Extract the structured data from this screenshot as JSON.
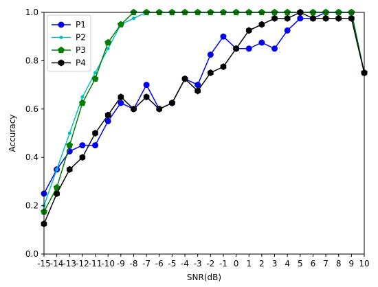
{
  "chart_data": {
    "type": "line",
    "title": "",
    "xlabel": "SNR(dB)",
    "ylabel": "Accuracy",
    "xlim": [
      -15,
      10
    ],
    "ylim": [
      0.0,
      1.0
    ],
    "x": [
      -15,
      -14,
      -13,
      -12,
      -11,
      -10,
      -9,
      -8,
      -7,
      -6,
      -5,
      -4,
      -3,
      -2,
      -1,
      0,
      1,
      2,
      3,
      4,
      5,
      6,
      7,
      8,
      9,
      10
    ],
    "x_ticks": [
      "-15",
      "-14",
      "-13",
      "-12",
      "-11",
      "-10",
      "-9",
      "-8",
      "-7",
      "-6",
      "-5",
      "-4",
      "-3",
      "-2",
      "-1",
      "0",
      "1",
      "2",
      "3",
      "4",
      "5",
      "6",
      "7",
      "8",
      "9",
      "10"
    ],
    "y_ticks": [
      "0.0",
      "0.2",
      "0.4",
      "0.6",
      "0.8",
      "1.0"
    ],
    "grid": false,
    "legend_position": "top-left",
    "series": [
      {
        "name": "P1",
        "color": "#0000ee",
        "marker": "circle",
        "values": [
          0.25,
          0.35,
          0.425,
          0.45,
          0.45,
          0.55,
          0.625,
          0.6,
          0.7,
          0.6,
          0.625,
          0.725,
          0.7,
          0.825,
          0.9,
          0.85,
          0.85,
          0.875,
          0.85,
          0.925,
          0.975,
          0.975,
          1.0,
          1.0,
          1.0,
          0.75
        ]
      },
      {
        "name": "P2",
        "color": "#00bfbf",
        "marker": "point",
        "values": [
          0.2,
          0.35,
          0.5,
          0.65,
          0.75,
          0.85,
          0.95,
          0.975,
          1.0,
          1.0,
          1.0,
          1.0,
          1.0,
          1.0,
          1.0,
          1.0,
          1.0,
          1.0,
          1.0,
          1.0,
          1.0,
          1.0,
          1.0,
          1.0,
          1.0,
          0.75
        ]
      },
      {
        "name": "P3",
        "color": "#007f00",
        "marker": "pentagon",
        "values": [
          0.175,
          0.275,
          0.45,
          0.625,
          0.725,
          0.875,
          0.95,
          1.0,
          1.0,
          1.0,
          1.0,
          1.0,
          1.0,
          1.0,
          1.0,
          1.0,
          1.0,
          1.0,
          1.0,
          1.0,
          1.0,
          1.0,
          1.0,
          1.0,
          1.0,
          0.75
        ]
      },
      {
        "name": "P4",
        "color": "#000000",
        "marker": "hexagon",
        "values": [
          0.125,
          0.25,
          0.35,
          0.4,
          0.5,
          0.575,
          0.65,
          0.6,
          0.65,
          0.6,
          0.625,
          0.725,
          0.675,
          0.75,
          0.775,
          0.85,
          0.925,
          0.95,
          0.975,
          0.975,
          1.0,
          0.975,
          0.975,
          0.975,
          0.975,
          0.75
        ]
      }
    ]
  }
}
